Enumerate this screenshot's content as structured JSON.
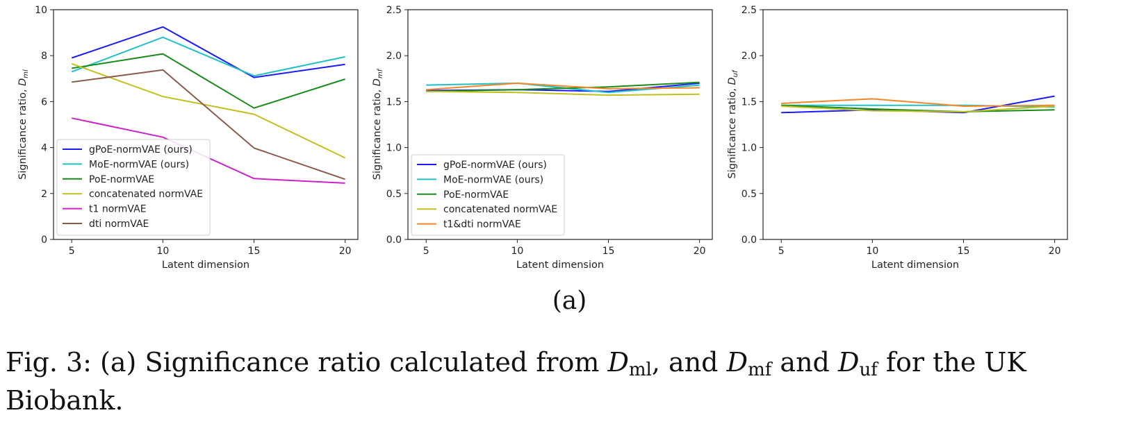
{
  "chart_data": [
    {
      "type": "line",
      "xlabel": "Latent dimension",
      "ylabel": "Significance ratio, D_ml",
      "ylabel_main": "Significance ratio, ",
      "ylabel_sym": "D",
      "ylabel_sub": "ml",
      "x": [
        5,
        10,
        15,
        20
      ],
      "xlim": [
        4,
        20.7
      ],
      "ylim": [
        0,
        10
      ],
      "yticks": [
        "0",
        "2",
        "4",
        "6",
        "8",
        "10"
      ],
      "ytick_values": [
        0,
        2,
        4,
        6,
        8,
        10
      ],
      "xticks": [
        "5",
        "10",
        "15",
        "20"
      ],
      "grid": false,
      "legend_position": "lower-left",
      "series": [
        {
          "name": "gPoE-normVAE (ours)",
          "color": "#1a1aff",
          "values": [
            7.9,
            9.25,
            7.05,
            7.62
          ]
        },
        {
          "name": "MoE-normVAE (ours)",
          "color": "#1fc0c8",
          "values": [
            7.3,
            8.8,
            7.12,
            7.95
          ]
        },
        {
          "name": "PoE-normVAE",
          "color": "#1a8a1a",
          "values": [
            7.45,
            8.08,
            5.72,
            6.98
          ]
        },
        {
          "name": "concatenated normVAE",
          "color": "#c0c020",
          "values": [
            7.65,
            6.22,
            5.45,
            3.55
          ]
        },
        {
          "name": "t1 normVAE",
          "color": "#cc22cc",
          "values": [
            5.28,
            4.45,
            2.65,
            2.45
          ]
        },
        {
          "name": "dti normVAE",
          "color": "#8c5a4a",
          "values": [
            6.85,
            7.38,
            3.98,
            2.62
          ]
        }
      ]
    },
    {
      "type": "line",
      "xlabel": "Latent dimension",
      "ylabel": "Significance ratio, D_mf",
      "ylabel_main": "Significance ratio, ",
      "ylabel_sym": "D",
      "ylabel_sub": "mf",
      "x": [
        5,
        10,
        15,
        20
      ],
      "xlim": [
        4,
        20.7
      ],
      "ylim": [
        0,
        2.5
      ],
      "yticks": [
        "0.0",
        "0.5",
        "1.0",
        "1.5",
        "2.0",
        "2.5"
      ],
      "ytick_values": [
        0,
        0.5,
        1,
        1.5,
        2,
        2.5
      ],
      "xticks": [
        "5",
        "10",
        "15",
        "20"
      ],
      "grid": false,
      "legend_position": "lower-left",
      "series": [
        {
          "name": "gPoE-normVAE (ours)",
          "color": "#1a1aff",
          "values": [
            1.62,
            1.63,
            1.61,
            1.7
          ]
        },
        {
          "name": "MoE-normVAE (ours)",
          "color": "#1fc0c8",
          "values": [
            1.68,
            1.7,
            1.6,
            1.68
          ]
        },
        {
          "name": "PoE-normVAE",
          "color": "#1a8a1a",
          "values": [
            1.61,
            1.63,
            1.66,
            1.71
          ]
        },
        {
          "name": "concatenated normVAE",
          "color": "#c0c020",
          "values": [
            1.61,
            1.6,
            1.57,
            1.58
          ]
        },
        {
          "name": "t1&dti normVAE",
          "color": "#f5872a",
          "values": [
            1.63,
            1.7,
            1.64,
            1.65
          ]
        }
      ]
    },
    {
      "type": "line",
      "xlabel": "Latent dimension",
      "ylabel": "Significance ratio, D_uf",
      "ylabel_main": "Significance ratio, ",
      "ylabel_sym": "D",
      "ylabel_sub": "uf",
      "x": [
        5,
        10,
        15,
        20
      ],
      "xlim": [
        4,
        20.7
      ],
      "ylim": [
        0,
        2.5
      ],
      "yticks": [
        "0.0",
        "0.5",
        "1.0",
        "1.5",
        "2.0",
        "2.5"
      ],
      "ytick_values": [
        0,
        0.5,
        1,
        1.5,
        2,
        2.5
      ],
      "xticks": [
        "5",
        "10",
        "15",
        "20"
      ],
      "grid": false,
      "legend_position": "none",
      "series": [
        {
          "name": "gPoE-normVAE (ours)",
          "color": "#1a1aff",
          "values": [
            1.38,
            1.41,
            1.38,
            1.56
          ]
        },
        {
          "name": "MoE-normVAE (ours)",
          "color": "#1fc0c8",
          "values": [
            1.46,
            1.46,
            1.46,
            1.44
          ]
        },
        {
          "name": "PoE-normVAE",
          "color": "#1a8a1a",
          "values": [
            1.46,
            1.42,
            1.39,
            1.41
          ]
        },
        {
          "name": "concatenated normVAE",
          "color": "#c0c020",
          "values": [
            1.45,
            1.4,
            1.39,
            1.45
          ]
        },
        {
          "name": "t1&dti normVAE",
          "color": "#f5872a",
          "values": [
            1.48,
            1.53,
            1.45,
            1.46
          ]
        }
      ]
    }
  ],
  "sublabel": "(a)",
  "caption": {
    "prefix": "Fig. 3: (a) Significance ratio calculated from ",
    "d1": "D",
    "d1_sub": "ml",
    "mid1": ", and ",
    "d2": "D",
    "d2_sub": "mf",
    "mid2": " and ",
    "d3": "D",
    "d3_sub": "uf",
    "suffix": " for the UK Biobank."
  }
}
